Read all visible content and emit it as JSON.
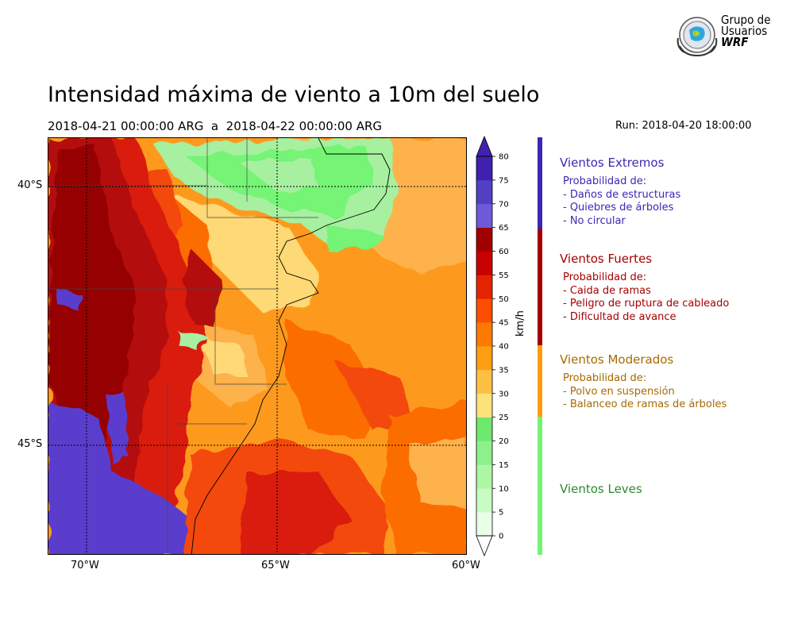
{
  "title": "Intensidad máxima de viento a 10m del suelo",
  "period": "2018-04-21 00:00:00 ARG  a  2018-04-22 00:00:00 ARG",
  "run": "Run: 2018-04-20 18:00:00",
  "logo": {
    "line1": "Grupo de",
    "line2": "Usuarios",
    "line3": "WRF"
  },
  "map": {
    "lat_labels": [
      "40°S",
      "45°S"
    ],
    "lon_labels": [
      "70°W",
      "65°W",
      "60°W"
    ],
    "colors": {
      "land_light": "#fed976",
      "orange_light": "#feb24c",
      "orange": "#fd9a1e",
      "orange_dark": "#fc6d00",
      "red_orange": "#f34a10",
      "red": "#d91c10",
      "red_dark": "#b40a0a",
      "darkred": "#960000",
      "green": "#74f474",
      "green_light": "#a6f0a0",
      "purple": "#5a3ccc"
    }
  },
  "colorbar": {
    "unit": "km/h",
    "ticks": [
      "0",
      "5",
      "10",
      "15",
      "20",
      "25",
      "30",
      "35",
      "40",
      "45",
      "50",
      "55",
      "60",
      "65",
      "70",
      "75",
      "80"
    ],
    "colors": [
      "#e8ffe8",
      "#c8fcc2",
      "#aef6a6",
      "#8ef08a",
      "#6ee86e",
      "#fde27a",
      "#fec044",
      "#fd9e12",
      "#fc7a00",
      "#fb4e00",
      "#e42400",
      "#c80000",
      "#a00000",
      "#6e5ad8",
      "#5040c4",
      "#4020b0"
    ]
  },
  "categories": [
    {
      "name": "Vientos Extremos",
      "color": "#3a28b4",
      "prob_label": "Probabilidad de:",
      "items": [
        "- Daños de estructuras",
        "- Quiebres de árboles",
        "- No circular"
      ]
    },
    {
      "name": "Vientos Fuertes",
      "color": "#a50000",
      "prob_label": "Probabilidad de:",
      "items": [
        "- Caida de ramas",
        "- Peligro de ruptura de cableado",
        "- Dificultad de avance"
      ]
    },
    {
      "name": "Vientos Moderados",
      "color": "#a76a00",
      "prob_label": "Probabilidad de:",
      "items": [
        "- Polvo en suspensión",
        "- Balanceo de ramas de árboles"
      ]
    },
    {
      "name": "Vientos Leves",
      "color": "#2e8a2e",
      "prob_label": "",
      "items": []
    }
  ],
  "category_bar_colors": [
    "#3a28b4",
    "#a50000",
    "#fd9e12",
    "#74f474"
  ]
}
